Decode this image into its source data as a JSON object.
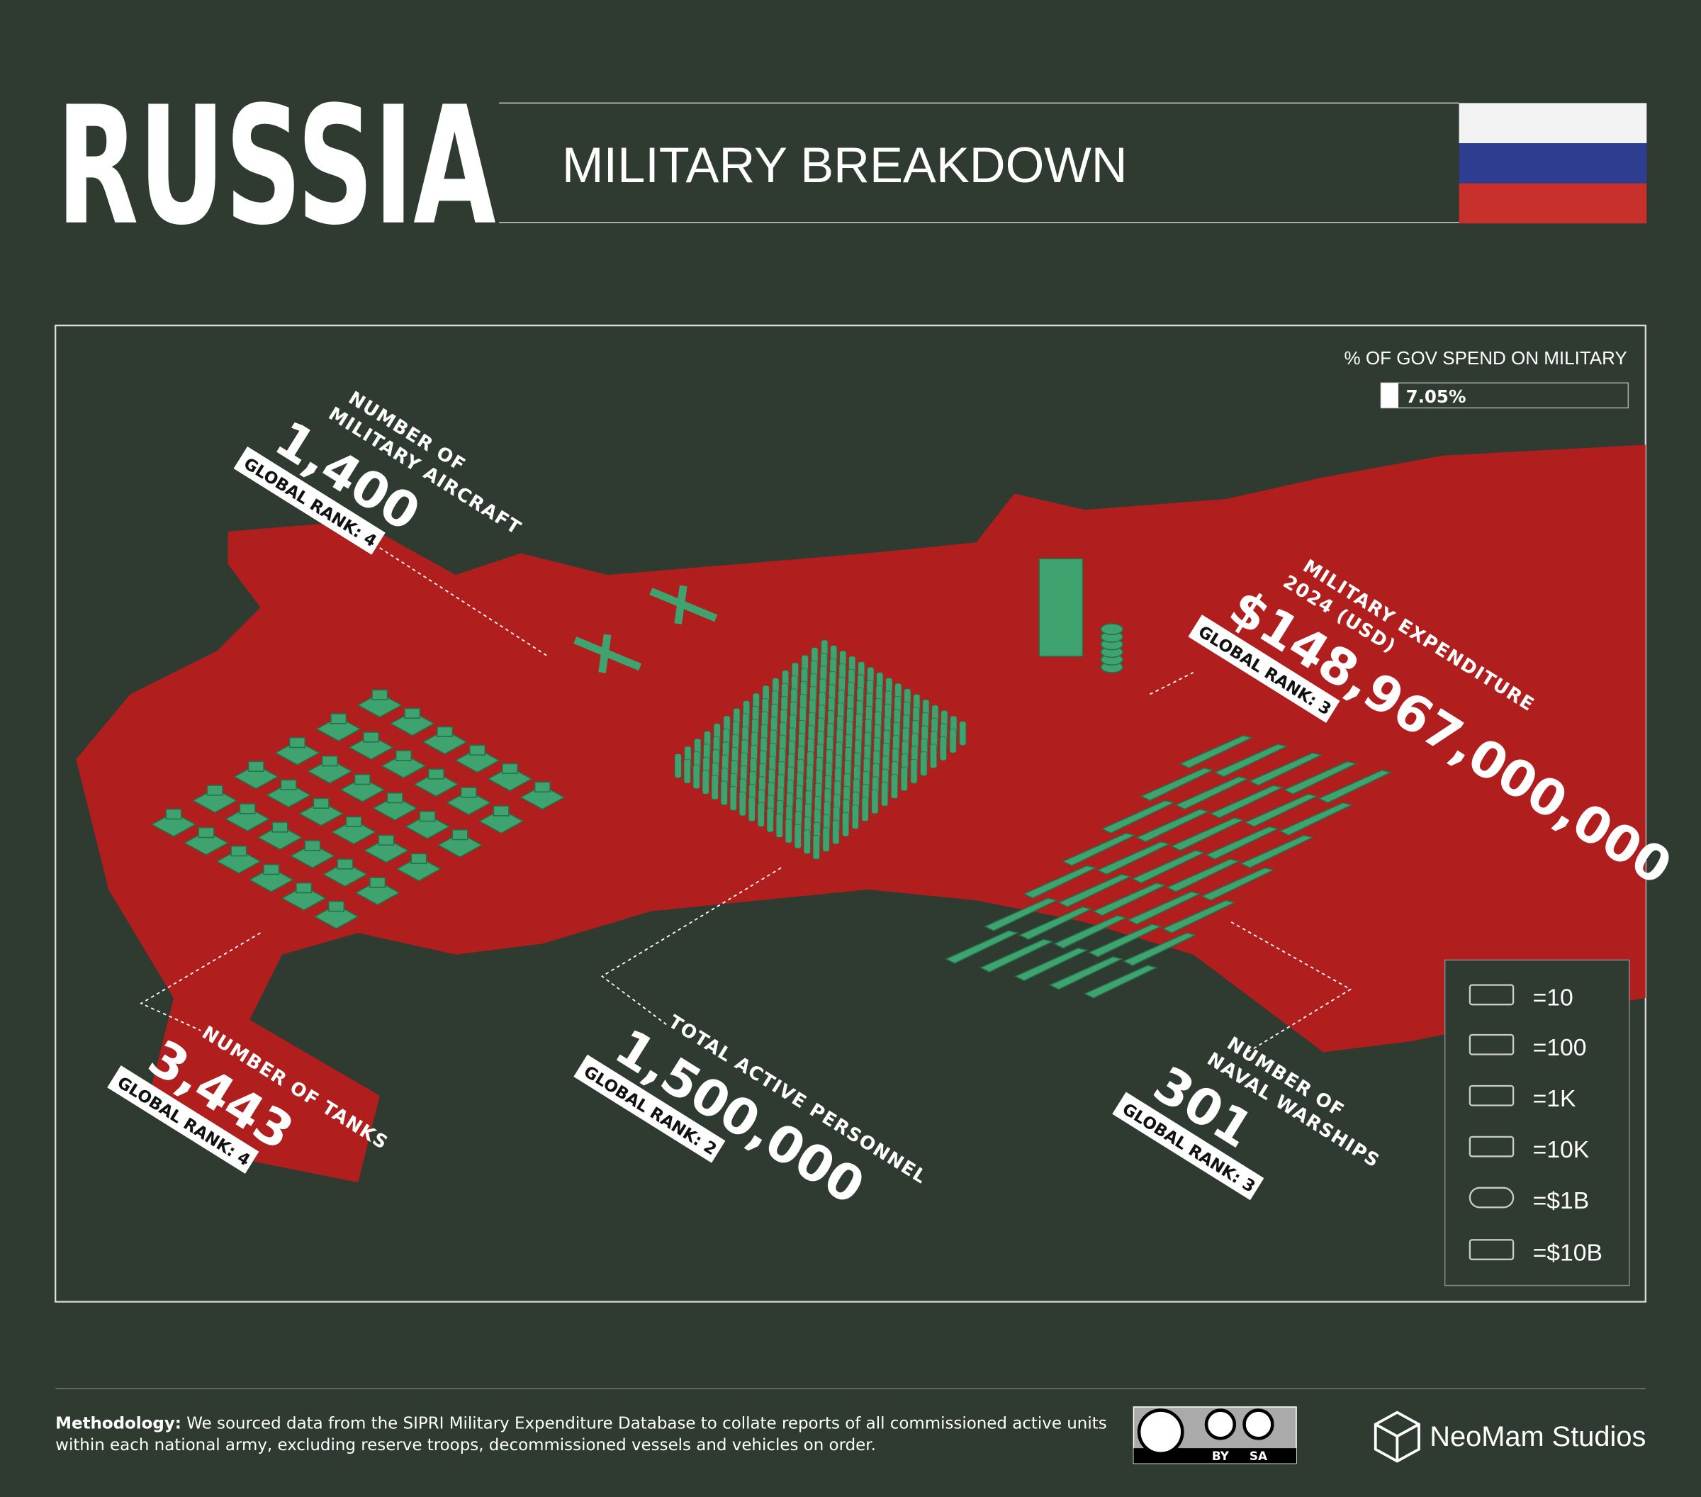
{
  "header": {
    "title": "RUSSIA",
    "subtitle": "MILITARY BREAKDOWN"
  },
  "gov_spend": {
    "label": "% OF GOV SPEND ON MILITARY",
    "value": 7.05,
    "value_label": "7.05%"
  },
  "stats": {
    "aircraft": {
      "lines": [
        "NUMBER OF",
        "MILITARY AIRCRAFT"
      ],
      "value": "1,400",
      "rank": "GLOBAL RANK: 4"
    },
    "expenditure": {
      "lines": [
        "MILITARY EXPENDITURE",
        "2024 (USD)"
      ],
      "value": "$148,967,000,000",
      "rank": "GLOBAL RANK: 3"
    },
    "tanks": {
      "lines": [
        "NUMBER OF TANKS"
      ],
      "value": "3,443",
      "rank": "GLOBAL RANK: 4"
    },
    "personnel": {
      "lines": [
        "TOTAL ACTIVE PERSONNEL"
      ],
      "value": "1,500,000",
      "rank": "GLOBAL RANK: 2"
    },
    "warships": {
      "lines": [
        "NUMBER OF",
        "NAVAL WARSHIPS"
      ],
      "value": "301",
      "rank": "GLOBAL RANK: 3"
    }
  },
  "legend": [
    "=10",
    "=100",
    "=1K",
    "=10K",
    "=$1B",
    "=$10B"
  ],
  "footer": {
    "methodology_label": "Methodology:",
    "methodology_lines": [
      "We sourced data from the SIPRI Military Expenditure Database to collate reports of all commissioned active units",
      "within each national army, excluding reserve troops, decommissioned vessels and vehicles on order."
    ],
    "license": [
      "BY",
      "SA"
    ],
    "brand": "NeoMam Studios"
  }
}
